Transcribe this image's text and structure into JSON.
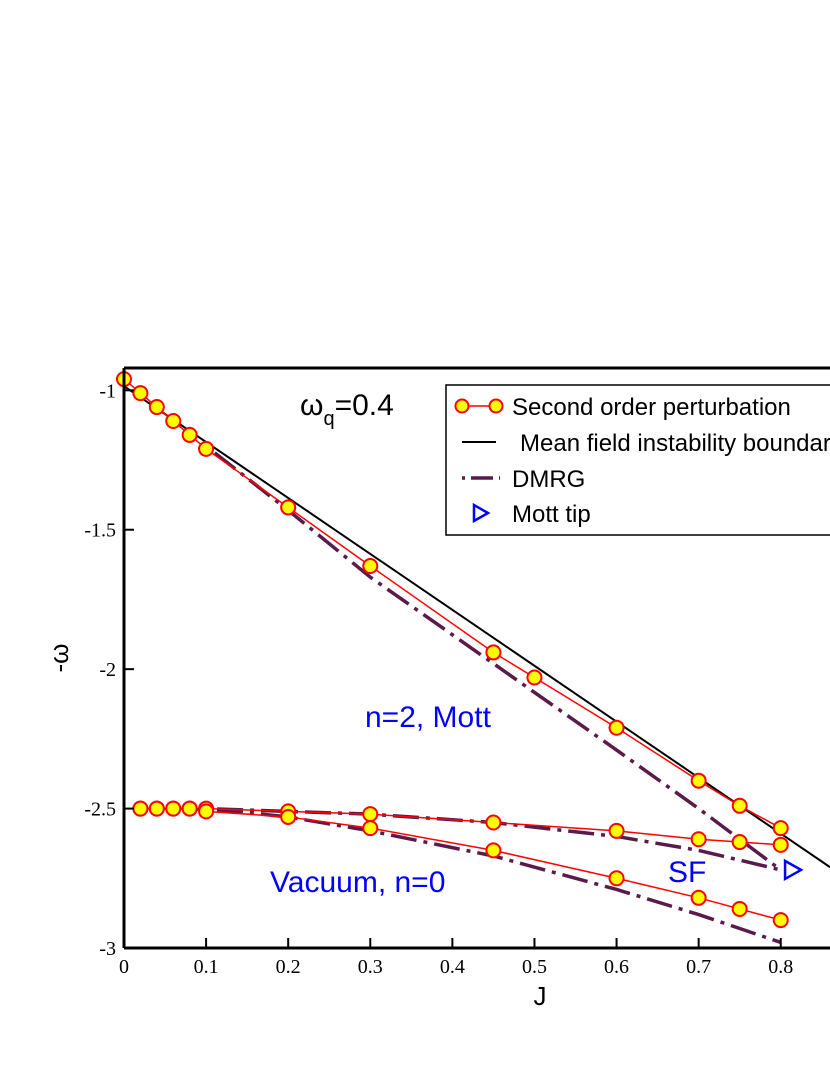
{
  "chart_data": {
    "type": "line",
    "xlabel": "J",
    "ylabel": "-ω",
    "xlim": [
      0,
      0.86
    ],
    "ylim": [
      -3,
      -0.92
    ],
    "x_ticks": [
      {
        "value": 0,
        "label": "0"
      },
      {
        "value": 0.1,
        "label": "0.1"
      },
      {
        "value": 0.2,
        "label": "0.2"
      },
      {
        "value": 0.3,
        "label": "0.3"
      },
      {
        "value": 0.4,
        "label": "0.4"
      },
      {
        "value": 0.5,
        "label": "0.5"
      },
      {
        "value": 0.6,
        "label": "0.6"
      },
      {
        "value": 0.7,
        "label": "0.7"
      },
      {
        "value": 0.8,
        "label": "0.8"
      }
    ],
    "y_ticks": [
      {
        "value": -1,
        "label": "-1"
      },
      {
        "value": -1.5,
        "label": "-1.5"
      },
      {
        "value": -2,
        "label": "-2"
      },
      {
        "value": -2.5,
        "label": "-2.5"
      },
      {
        "value": -3,
        "label": "-3"
      }
    ],
    "grid": false,
    "legend_position": "top-right",
    "colors": {
      "marker_fill": "#ffff00",
      "marker_edge": "#ff0000",
      "perturbation_line": "#ff0000",
      "mean_field": "#000000",
      "dmrg": "#5a1a4a",
      "mott_tip": "#0000ff",
      "annotation": "#0000ff"
    },
    "series": [
      {
        "name": "Second order perturbation",
        "style": "line+circle",
        "curves": [
          {
            "x": [
              0,
              0.02,
              0.04,
              0.06,
              0.08,
              0.1,
              0.2,
              0.3,
              0.45,
              0.5,
              0.6,
              0.7,
              0.75,
              0.8
            ],
            "y": [
              -0.96,
              -1.01,
              -1.06,
              -1.11,
              -1.16,
              -1.21,
              -1.42,
              -1.63,
              -1.94,
              -2.03,
              -2.21,
              -2.4,
              -2.49,
              -2.57
            ]
          },
          {
            "x": [
              0.02,
              0.04,
              0.06,
              0.08,
              0.1,
              0.2,
              0.3,
              0.45,
              0.6,
              0.7,
              0.75,
              0.8
            ],
            "y": [
              -2.5,
              -2.5,
              -2.5,
              -2.5,
              -2.5,
              -2.51,
              -2.52,
              -2.55,
              -2.58,
              -2.61,
              -2.62,
              -2.63
            ]
          },
          {
            "x": [
              0.02,
              0.04,
              0.06,
              0.08,
              0.1,
              0.2,
              0.3,
              0.45,
              0.6,
              0.7,
              0.75,
              0.8
            ],
            "y": [
              -2.5,
              -2.5,
              -2.5,
              -2.5,
              -2.51,
              -2.53,
              -2.57,
              -2.65,
              -2.75,
              -2.82,
              -2.86,
              -2.9
            ]
          }
        ]
      },
      {
        "name": "Mean field instability boundary",
        "style": "solid",
        "curves": [
          {
            "x": [
              0,
              0.86
            ],
            "y": [
              -0.985,
              -2.71
            ]
          }
        ]
      },
      {
        "name": "DMRG",
        "style": "dash-dot",
        "curves": [
          {
            "x": [
              0.1,
              0.2,
              0.3,
              0.45,
              0.6,
              0.7,
              0.8
            ],
            "y": [
              -1.2,
              -1.43,
              -1.67,
              -1.98,
              -2.29,
              -2.5,
              -2.72
            ]
          },
          {
            "x": [
              0.1,
              0.2,
              0.3,
              0.45,
              0.6,
              0.7,
              0.8
            ],
            "y": [
              -2.5,
              -2.51,
              -2.52,
              -2.55,
              -2.6,
              -2.65,
              -2.72
            ]
          },
          {
            "x": [
              0.1,
              0.2,
              0.3,
              0.45,
              0.6,
              0.7,
              0.8
            ],
            "y": [
              -2.5,
              -2.53,
              -2.58,
              -2.67,
              -2.79,
              -2.88,
              -2.98
            ]
          }
        ]
      },
      {
        "name": "Mott tip",
        "style": "triangle",
        "points": [
          {
            "x": 0.815,
            "y": -2.72
          }
        ]
      }
    ],
    "annotations": {
      "omega_q": {
        "prefix": "ω",
        "sub": "q",
        "suffix": "=0.4"
      },
      "mott_region": "n=2, Mott",
      "vacuum_region": "Vacuum, n=0",
      "sf_region": "SF"
    }
  }
}
